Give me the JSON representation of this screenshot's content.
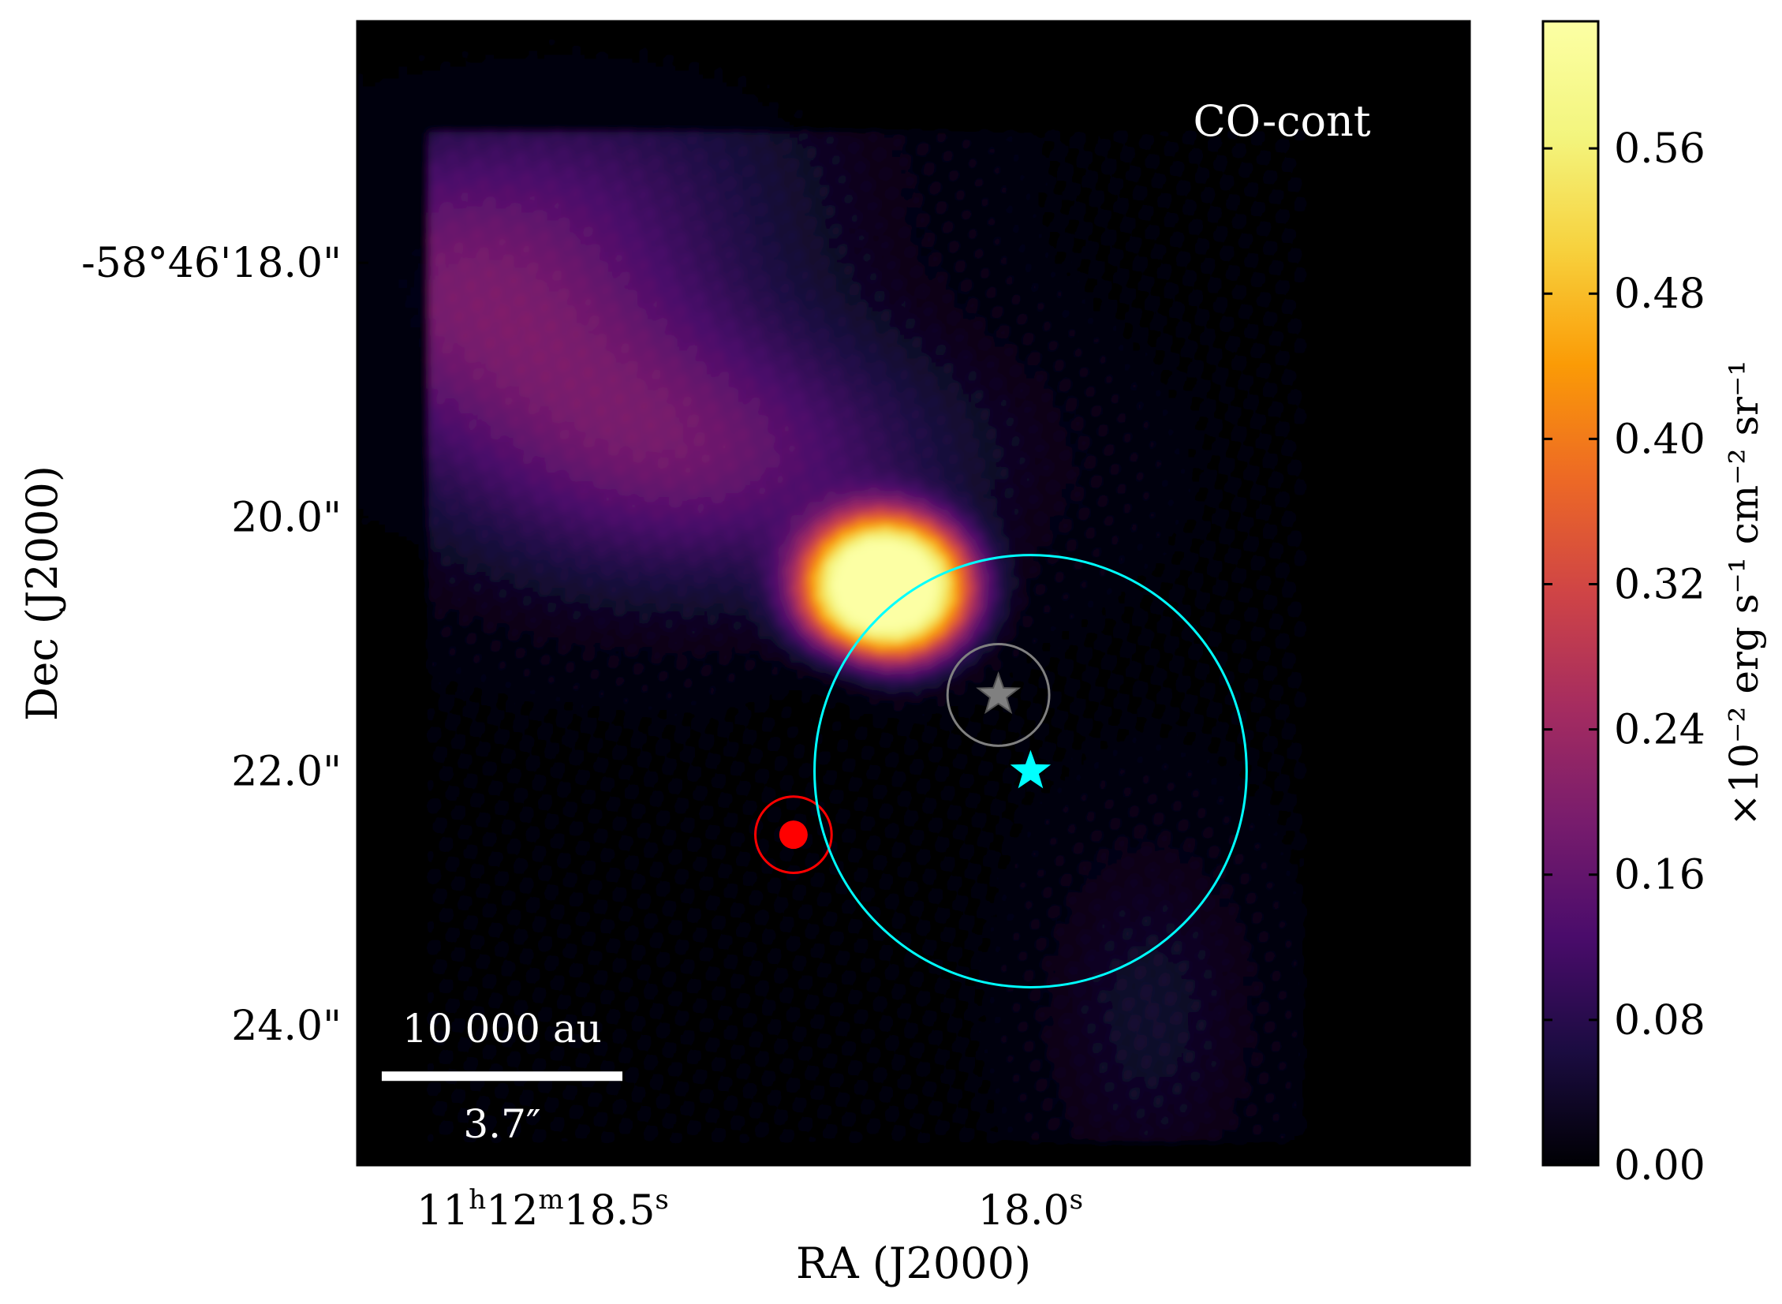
{
  "chart_data": {
    "type": "heatmap",
    "colormap": "inferno",
    "map_label": "CO-cont",
    "xlabel": "RA (J2000)",
    "ylabel": "Dec (J2000)",
    "x_ticks": [
      {
        "value": 18.5,
        "h": "11",
        "m": "12",
        "s": "18.5",
        "label": "11h12m18.5s"
      },
      {
        "value": 18.0,
        "s": "18.0",
        "label": "18.0s"
      }
    ],
    "y_ticks": [
      {
        "value": 18.0,
        "label": "-58°46'18.0\""
      },
      {
        "value": 20.0,
        "label": "20.0\""
      },
      {
        "value": 22.0,
        "label": "22.0\""
      },
      {
        "value": 24.0,
        "label": "24.0\""
      }
    ],
    "xlim_s": [
      18.69,
      17.55
    ],
    "ylim_arcsec": [
      16.1,
      25.1
    ],
    "colorbar": {
      "label": "×10⁻² erg s⁻¹ cm⁻² sr⁻¹",
      "range": [
        0.0,
        0.63
      ],
      "ticks": [
        "0.00",
        "0.08",
        "0.16",
        "0.24",
        "0.32",
        "0.40",
        "0.48",
        "0.56"
      ],
      "tick_values": [
        0.0,
        0.08,
        0.16,
        0.24,
        0.32,
        0.4,
        0.48,
        0.56
      ]
    },
    "emission_blobs": [
      {
        "ra": 18.15,
        "dec": 20.55,
        "peak": 0.7
      },
      {
        "ra": 18.34,
        "dec": 19.6,
        "peak": 0.14
      },
      {
        "ra": 18.52,
        "dec": 18.7,
        "peak": 0.11
      },
      {
        "ra": 18.64,
        "dec": 17.9,
        "peak": 0.1
      },
      {
        "ra": 18.45,
        "dec": 17.2,
        "peak": 0.06
      },
      {
        "ra": 17.88,
        "dec": 23.9,
        "peak": 0.04
      }
    ],
    "markers": [
      {
        "name": "cyan-star",
        "ra": 18.0,
        "dec": 22.0,
        "color": "#00ffff",
        "shape": "star"
      },
      {
        "name": "grey-star",
        "ra": 18.033,
        "dec": 21.4,
        "color": "#808080",
        "shape": "star",
        "circle_radius_arcsec": 0.4
      },
      {
        "name": "red-source",
        "ra": 18.243,
        "dec": 22.5,
        "color": "#ff0000",
        "shape": "dot",
        "circle_radius_arcsec": 0.3
      },
      {
        "name": "cyan-circle",
        "ra": 18.0,
        "dec": 22.0,
        "color": "#00ffff",
        "shape": "circle",
        "circle_radius_arcsec": 1.7
      }
    ],
    "scale_bar": {
      "top_label": "10 000 au",
      "bottom_label": "3.7″",
      "length_arcsec": 3.7,
      "color": "#ffffff"
    }
  }
}
